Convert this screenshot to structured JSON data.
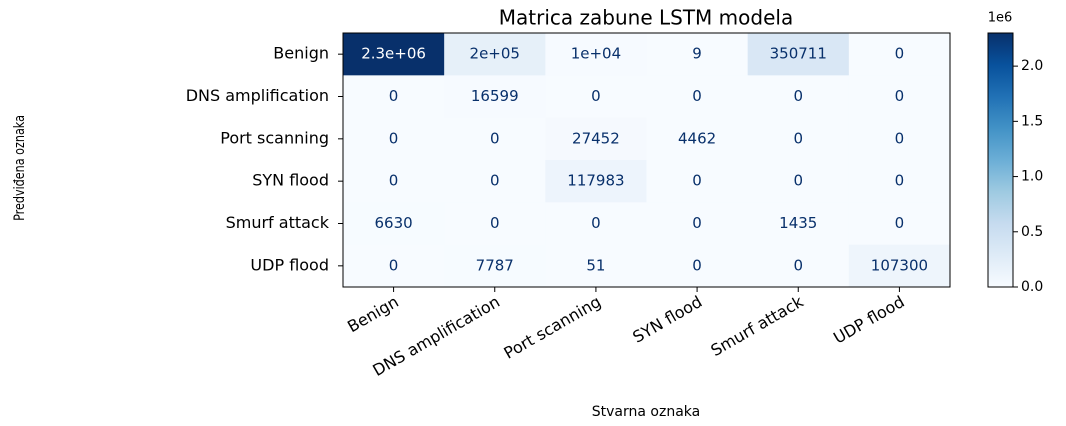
{
  "chart_data": {
    "type": "heatmap",
    "title": "Matrica zabune LSTM modela",
    "xlabel": "Stvarna oznaka",
    "ylabel": "Predviđena oznaka",
    "x_categories": [
      "Benign",
      "DNS amplification",
      "Port scanning",
      "SYN flood",
      "Smurf attack",
      "UDP flood"
    ],
    "y_categories": [
      "Benign",
      "DNS amplification",
      "Port scanning",
      "SYN flood",
      "Smurf attack",
      "UDP flood"
    ],
    "values": [
      [
        2300000,
        200000,
        10000,
        9,
        350711,
        0
      ],
      [
        0,
        16599,
        0,
        0,
        0,
        0
      ],
      [
        0,
        0,
        27452,
        4462,
        0,
        0
      ],
      [
        0,
        0,
        117983,
        0,
        0,
        0
      ],
      [
        6630,
        0,
        0,
        0,
        1435,
        0
      ],
      [
        0,
        7787,
        51,
        0,
        0,
        107300
      ]
    ],
    "value_labels": [
      [
        "2.3e+06",
        "2e+05",
        "1e+04",
        "9",
        "350711",
        "0"
      ],
      [
        "0",
        "16599",
        "0",
        "0",
        "0",
        "0"
      ],
      [
        "0",
        "0",
        "27452",
        "4462",
        "0",
        "0"
      ],
      [
        "0",
        "0",
        "117983",
        "0",
        "0",
        "0"
      ],
      [
        "6630",
        "0",
        "0",
        "0",
        "1435",
        "0"
      ],
      [
        "0",
        "7787",
        "51",
        "0",
        "0",
        "107300"
      ]
    ],
    "colormap": "Blues",
    "clim": [
      0,
      2300000
    ],
    "colorbar_offset": "1e6",
    "colorbar_ticks": [
      {
        "value": 0,
        "label": "0.0"
      },
      {
        "value": 500000,
        "label": "0.5"
      },
      {
        "value": 1000000,
        "label": "1.0"
      },
      {
        "value": 1500000,
        "label": "1.5"
      },
      {
        "value": 2000000,
        "label": "2.0"
      }
    ]
  }
}
